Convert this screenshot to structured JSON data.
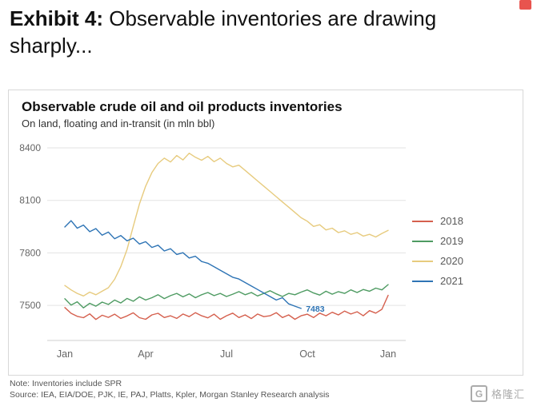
{
  "header": {
    "exhibit_label": "Exhibit 4:",
    "title_rest": " Observable inventories are drawing sharply..."
  },
  "chart_data": {
    "type": "line",
    "title": "Observable crude oil and oil products inventories",
    "subtitle": "On land, floating and in-transit (in mln bbl)",
    "xlabel": "",
    "ylabel": "",
    "grid": "horizontal",
    "legend_position": "right",
    "ylim": [
      7300,
      8450
    ],
    "yticks": [
      7500,
      7800,
      8100,
      8400
    ],
    "xlim": [
      0,
      52
    ],
    "x_unit": "week-of-year",
    "xticks": [
      {
        "week": 0,
        "label": "Jan"
      },
      {
        "week": 13,
        "label": "Apr"
      },
      {
        "week": 26,
        "label": "Jul"
      },
      {
        "week": 39,
        "label": "Oct"
      },
      {
        "week": 52,
        "label": "Jan"
      }
    ],
    "annotation": {
      "text": "7483",
      "week": 38,
      "value": 7483,
      "series": "2021",
      "color": "#2e74b5"
    },
    "series": [
      {
        "name": "2018",
        "color": "#d5604e",
        "start_week": 0,
        "values": [
          7488,
          7455,
          7438,
          7430,
          7452,
          7420,
          7444,
          7432,
          7450,
          7426,
          7440,
          7458,
          7430,
          7421,
          7446,
          7455,
          7431,
          7441,
          7426,
          7451,
          7436,
          7459,
          7441,
          7429,
          7450,
          7421,
          7441,
          7456,
          7431,
          7446,
          7425,
          7451,
          7436,
          7441,
          7459,
          7431,
          7446,
          7421,
          7441,
          7450,
          7431,
          7456,
          7441,
          7461,
          7446,
          7468,
          7451,
          7464,
          7441,
          7470,
          7456,
          7478,
          7558
        ]
      },
      {
        "name": "2019",
        "color": "#4e9b62",
        "start_week": 0,
        "values": [
          7538,
          7502,
          7521,
          7486,
          7512,
          7496,
          7519,
          7506,
          7531,
          7514,
          7540,
          7524,
          7549,
          7531,
          7544,
          7561,
          7539,
          7556,
          7569,
          7549,
          7566,
          7544,
          7561,
          7574,
          7556,
          7569,
          7551,
          7564,
          7579,
          7561,
          7574,
          7554,
          7569,
          7584,
          7566,
          7551,
          7569,
          7561,
          7576,
          7589,
          7571,
          7559,
          7581,
          7564,
          7579,
          7569,
          7589,
          7574,
          7591,
          7581,
          7599,
          7589,
          7619
        ]
      },
      {
        "name": "2020",
        "color": "#e7cb7e",
        "start_week": 0,
        "values": [
          7614,
          7589,
          7569,
          7554,
          7576,
          7561,
          7581,
          7601,
          7649,
          7721,
          7819,
          7951,
          8079,
          8181,
          8259,
          8311,
          8341,
          8319,
          8356,
          8331,
          8369,
          8346,
          8329,
          8351,
          8321,
          8341,
          8311,
          8291,
          8301,
          8271,
          8241,
          8211,
          8181,
          8151,
          8121,
          8091,
          8061,
          8031,
          8001,
          7981,
          7951,
          7961,
          7931,
          7941,
          7916,
          7926,
          7906,
          7916,
          7896,
          7906,
          7891,
          7911,
          7929
        ]
      },
      {
        "name": "2021",
        "color": "#2e74b5",
        "start_week": 0,
        "values": [
          7948,
          7984,
          7941,
          7959,
          7921,
          7939,
          7901,
          7919,
          7881,
          7899,
          7869,
          7884,
          7851,
          7864,
          7831,
          7844,
          7811,
          7824,
          7791,
          7801,
          7771,
          7781,
          7751,
          7741,
          7721,
          7701,
          7681,
          7661,
          7651,
          7631,
          7611,
          7591,
          7571,
          7551,
          7531,
          7544,
          7509,
          7496,
          7483
        ]
      }
    ]
  },
  "footer": {
    "note": "Note: Inventories include SPR",
    "source": "Source: IEA, EIA/DOE, PJK, IE, PAJ, Platts, Kpler, Morgan Stanley Research analysis",
    "logo_letter": "G",
    "logo_text": "格隆汇"
  }
}
